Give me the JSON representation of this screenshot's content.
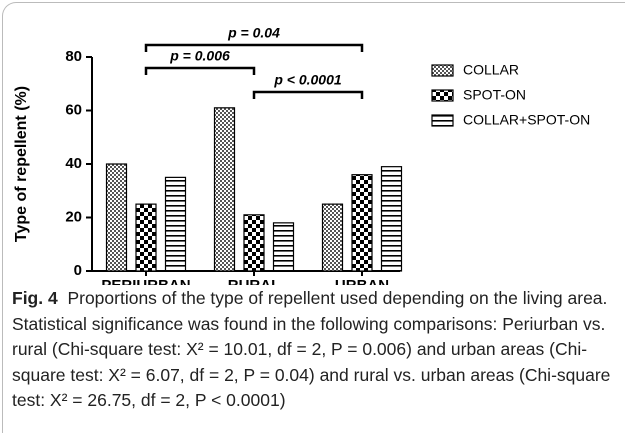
{
  "chart_data": {
    "type": "bar",
    "y_label": "Type of repellent (%)",
    "categories": [
      "PERIURBAN",
      "RURAL",
      "URBAN"
    ],
    "series": [
      {
        "name": "COLLAR",
        "color": "#000000",
        "pattern": "dots",
        "values": [
          40,
          61,
          25
        ]
      },
      {
        "name": "SPOT-ON",
        "color": "#000000",
        "pattern": "checker",
        "values": [
          25,
          21,
          36
        ]
      },
      {
        "name": "COLLAR+SPOT-ON",
        "color": "#000000",
        "pattern": "hlines",
        "values": [
          35,
          18,
          39
        ]
      }
    ],
    "ylim": [
      0,
      80
    ],
    "yticks": [
      0,
      20,
      40,
      60,
      80
    ],
    "legend": "right",
    "annotations": [
      "p = 0.04",
      "p = 0.006",
      "p < 0.0001"
    ]
  },
  "caption": {
    "label": "Fig. 4",
    "text": "Proportions of the type of repellent used depending on the living area. Statistical significance was found in the following comparisons: Periurban vs. rural (Chi-square test: X² = 10.01, df = 2, P = 0.006) and urban areas (Chi-square test: X² = 6.07, df = 2, P = 0.04) and rural vs. urban areas (Chi-square test: X² = 26.75, df = 2, P < 0.0001)"
  }
}
